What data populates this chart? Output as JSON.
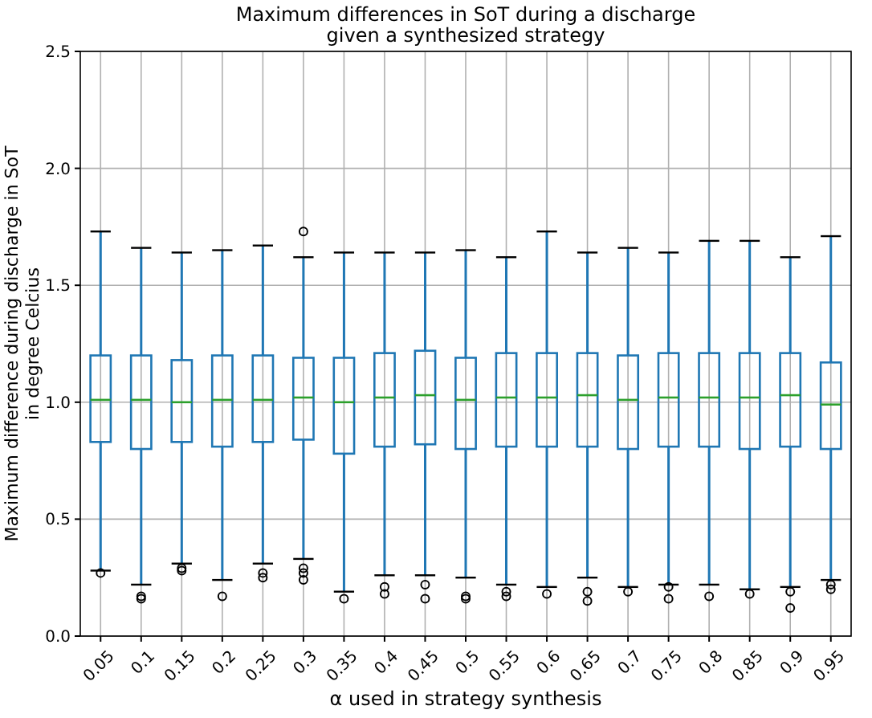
{
  "chart_data": {
    "type": "box",
    "title": "Maximum differences in SoT during a discharge\ngiven a synthesized strategy",
    "xlabel": "α used in strategy synthesis",
    "ylabel": "Maximum difference during discharge in SoT\nin degree Celcius",
    "categories": [
      "0.05",
      "0.1",
      "0.15",
      "0.2",
      "0.25",
      "0.3",
      "0.35",
      "0.4",
      "0.45",
      "0.5",
      "0.55",
      "0.6",
      "0.65",
      "0.7",
      "0.75",
      "0.8",
      "0.85",
      "0.9",
      "0.95"
    ],
    "color": "#1f77b4",
    "boxes": [
      {
        "low": 0.28,
        "q1": 0.83,
        "median": 1.01,
        "q3": 1.2,
        "high": 1.73,
        "outliers": [
          0.27
        ]
      },
      {
        "low": 0.22,
        "q1": 0.8,
        "median": 1.01,
        "q3": 1.2,
        "high": 1.66,
        "outliers": [
          0.17,
          0.16
        ]
      },
      {
        "low": 0.31,
        "q1": 0.83,
        "median": 1.0,
        "q3": 1.18,
        "high": 1.64,
        "outliers": [
          0.29,
          0.28
        ]
      },
      {
        "low": 0.24,
        "q1": 0.81,
        "median": 1.01,
        "q3": 1.2,
        "high": 1.65,
        "outliers": [
          0.17
        ]
      },
      {
        "low": 0.31,
        "q1": 0.83,
        "median": 1.01,
        "q3": 1.2,
        "high": 1.67,
        "outliers": [
          0.27,
          0.25
        ]
      },
      {
        "low": 0.33,
        "q1": 0.84,
        "median": 1.02,
        "q3": 1.19,
        "high": 1.62,
        "outliers": [
          1.73,
          0.29,
          0.27,
          0.24
        ]
      },
      {
        "low": 0.19,
        "q1": 0.78,
        "median": 1.0,
        "q3": 1.19,
        "high": 1.64,
        "outliers": [
          0.16
        ]
      },
      {
        "low": 0.26,
        "q1": 0.81,
        "median": 1.02,
        "q3": 1.21,
        "high": 1.64,
        "outliers": [
          0.21,
          0.18
        ]
      },
      {
        "low": 0.26,
        "q1": 0.82,
        "median": 1.03,
        "q3": 1.22,
        "high": 1.64,
        "outliers": [
          0.22,
          0.16
        ]
      },
      {
        "low": 0.25,
        "q1": 0.8,
        "median": 1.01,
        "q3": 1.19,
        "high": 1.65,
        "outliers": [
          0.17,
          0.16
        ]
      },
      {
        "low": 0.22,
        "q1": 0.81,
        "median": 1.02,
        "q3": 1.21,
        "high": 1.62,
        "outliers": [
          0.19,
          0.17
        ]
      },
      {
        "low": 0.21,
        "q1": 0.81,
        "median": 1.02,
        "q3": 1.21,
        "high": 1.73,
        "outliers": [
          0.18
        ]
      },
      {
        "low": 0.25,
        "q1": 0.81,
        "median": 1.03,
        "q3": 1.21,
        "high": 1.64,
        "outliers": [
          0.19,
          0.15
        ]
      },
      {
        "low": 0.21,
        "q1": 0.8,
        "median": 1.01,
        "q3": 1.2,
        "high": 1.66,
        "outliers": [
          0.19
        ]
      },
      {
        "low": 0.22,
        "q1": 0.81,
        "median": 1.02,
        "q3": 1.21,
        "high": 1.64,
        "outliers": [
          0.21,
          0.16
        ]
      },
      {
        "low": 0.22,
        "q1": 0.81,
        "median": 1.02,
        "q3": 1.21,
        "high": 1.69,
        "outliers": [
          0.17
        ]
      },
      {
        "low": 0.2,
        "q1": 0.8,
        "median": 1.02,
        "q3": 1.21,
        "high": 1.69,
        "outliers": [
          0.18
        ]
      },
      {
        "low": 0.21,
        "q1": 0.81,
        "median": 1.03,
        "q3": 1.21,
        "high": 1.62,
        "outliers": [
          0.19,
          0.12
        ]
      },
      {
        "low": 0.24,
        "q1": 0.8,
        "median": 0.99,
        "q3": 1.17,
        "high": 1.71,
        "outliers": [
          0.22,
          0.2
        ]
      }
    ],
    "ylim": [
      0,
      2.5
    ],
    "yticks": [
      {
        "value": 0,
        "label": "0.0"
      },
      {
        "value": 0.5,
        "label": "0.5"
      },
      {
        "value": 1,
        "label": "1.0"
      },
      {
        "value": 1.5,
        "label": "1.5"
      },
      {
        "value": 2,
        "label": "2.0"
      },
      {
        "value": 2.5,
        "label": "2.5"
      }
    ],
    "grid": true,
    "marker": "circle"
  }
}
